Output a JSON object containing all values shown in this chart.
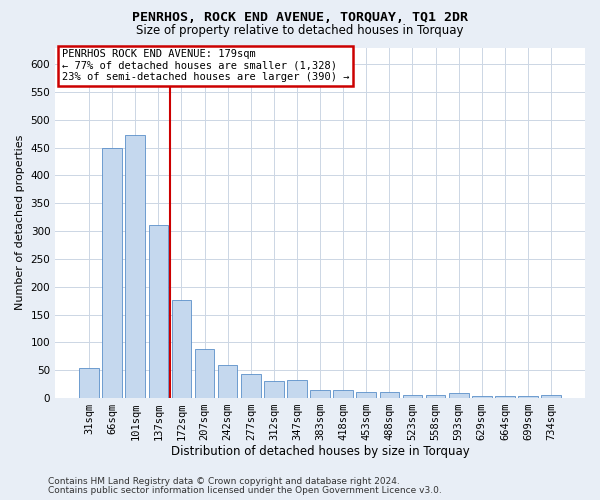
{
  "title": "PENRHOS, ROCK END AVENUE, TORQUAY, TQ1 2DR",
  "subtitle": "Size of property relative to detached houses in Torquay",
  "xlabel": "Distribution of detached houses by size in Torquay",
  "ylabel": "Number of detached properties",
  "categories": [
    "31sqm",
    "66sqm",
    "101sqm",
    "137sqm",
    "172sqm",
    "207sqm",
    "242sqm",
    "277sqm",
    "312sqm",
    "347sqm",
    "383sqm",
    "418sqm",
    "453sqm",
    "488sqm",
    "523sqm",
    "558sqm",
    "593sqm",
    "629sqm",
    "664sqm",
    "699sqm",
    "734sqm"
  ],
  "values": [
    54,
    450,
    472,
    311,
    176,
    88,
    59,
    43,
    31,
    32,
    15,
    15,
    10,
    10,
    6,
    6,
    9,
    4,
    4,
    3,
    5
  ],
  "bar_color": "#c5d8ee",
  "bar_edge_color": "#5b8fc9",
  "annotation_title": "PENRHOS ROCK END AVENUE: 179sqm",
  "annotation_line1": "← 77% of detached houses are smaller (1,328)",
  "annotation_line2": "23% of semi-detached houses are larger (390) →",
  "ylim_max": 630,
  "yticks": [
    0,
    50,
    100,
    150,
    200,
    250,
    300,
    350,
    400,
    450,
    500,
    550,
    600
  ],
  "red_line_x": 3.5,
  "footer1": "Contains HM Land Registry data © Crown copyright and database right 2024.",
  "footer2": "Contains public sector information licensed under the Open Government Licence v3.0.",
  "bg_color": "#e8eef6",
  "plot_bg": "#ffffff",
  "grid_color": "#ccd6e4",
  "title_fontsize": 9.5,
  "subtitle_fontsize": 8.5,
  "xlabel_fontsize": 8.5,
  "ylabel_fontsize": 8.0,
  "tick_fontsize": 7.5,
  "ann_fontsize": 7.5,
  "footer_fontsize": 6.5
}
